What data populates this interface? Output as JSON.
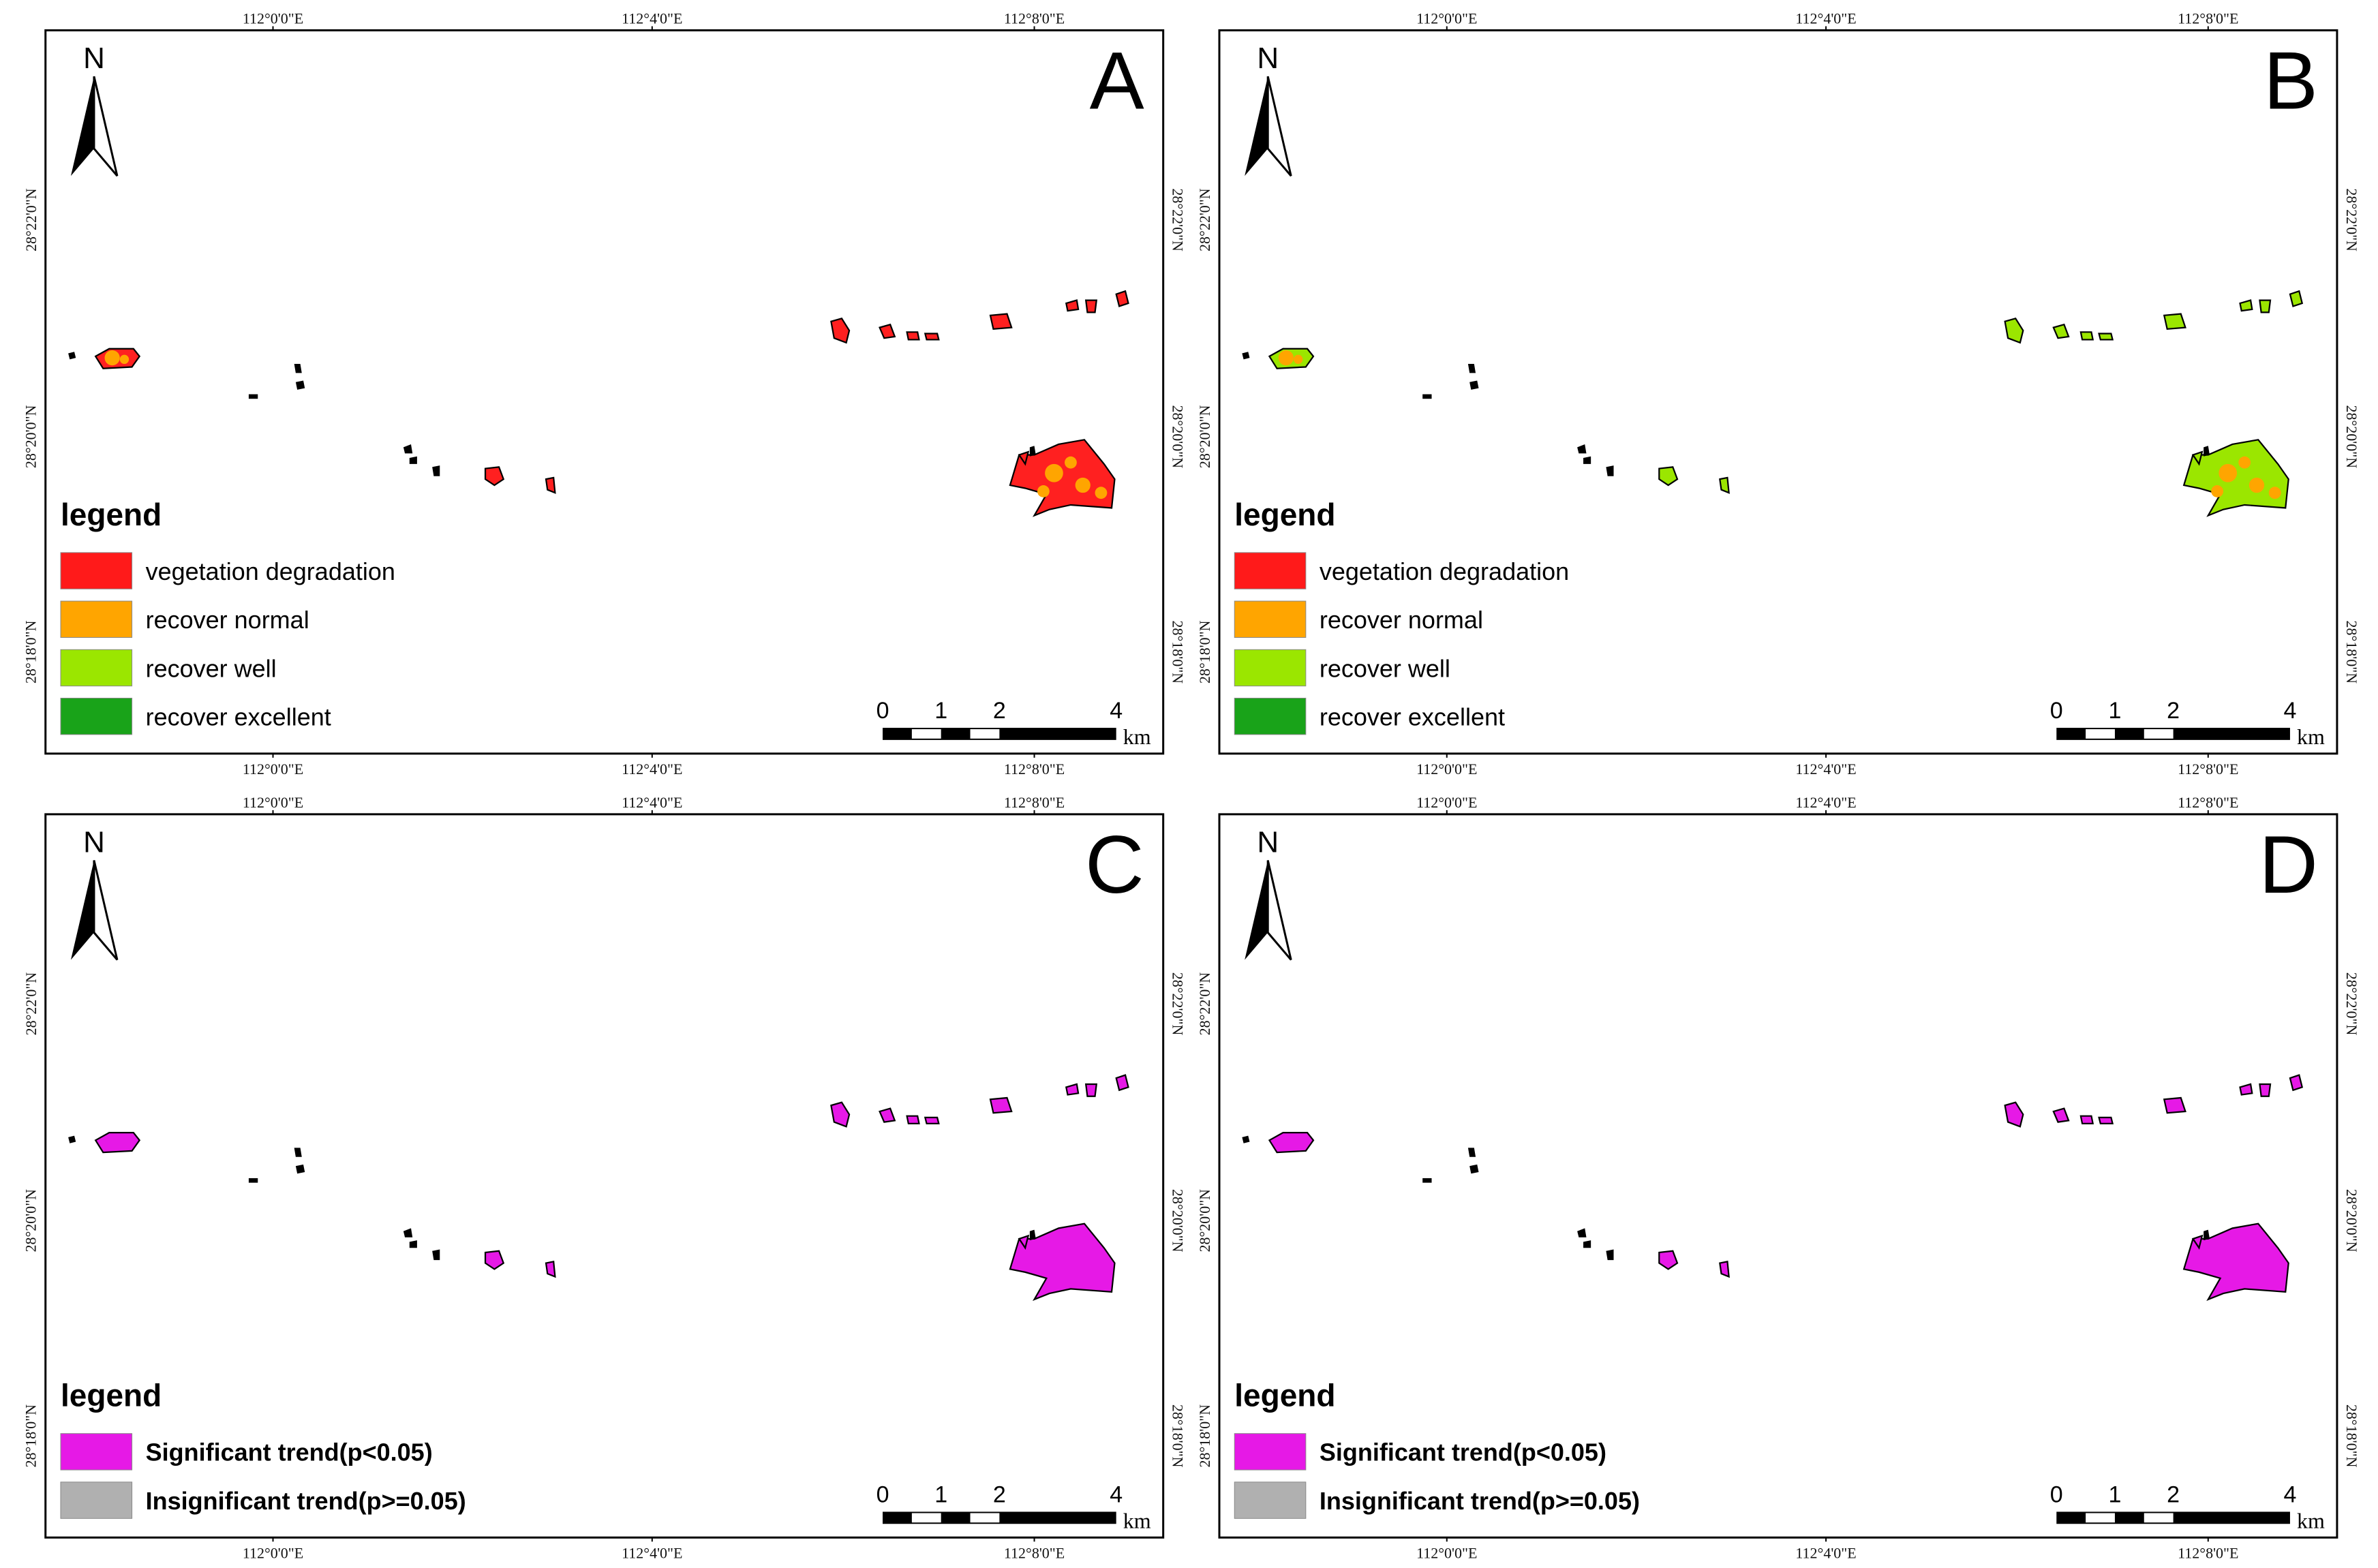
{
  "figure": {
    "panels": [
      {
        "id": "A",
        "legend": {
          "title": "legend",
          "items": [
            {
              "label": "vegetation degradation",
              "color": "#ff1a1a"
            },
            {
              "label": "recover normal",
              "color": "#ffa500"
            },
            {
              "label": "recover well",
              "color": "#9be600"
            },
            {
              "label": "recover excellent",
              "color": "#19a319"
            }
          ]
        },
        "patch_fill": "#ff2020",
        "patch_accent": "#ffa500"
      },
      {
        "id": "B",
        "legend": {
          "title": "legend",
          "items": [
            {
              "label": "vegetation degradation",
              "color": "#ff1a1a"
            },
            {
              "label": "recover normal",
              "color": "#ffa500"
            },
            {
              "label": "recover well",
              "color": "#9be600"
            },
            {
              "label": "recover excellent",
              "color": "#19a319"
            }
          ]
        },
        "patch_fill": "#9be600",
        "patch_accent": "#ffa500"
      },
      {
        "id": "C",
        "legend": {
          "title": "legend",
          "items": [
            {
              "label": "Significant trend(p<0.05)",
              "color": "#e619e6"
            },
            {
              "label": "Insignificant trend(p>=0.05)",
              "color": "#b0b0b0"
            }
          ]
        },
        "patch_fill": "#e619e6",
        "patch_accent": "#e619e6"
      },
      {
        "id": "D",
        "legend": {
          "title": "legend",
          "items": [
            {
              "label": "Significant trend(p<0.05)",
              "color": "#e619e6"
            },
            {
              "label": "Insignificant trend(p>=0.05)",
              "color": "#b0b0b0"
            }
          ]
        },
        "patch_fill": "#e619e6",
        "patch_accent": "#e619e6"
      }
    ],
    "lon_ticks": [
      "112°0'0\"E",
      "112°4'0\"E",
      "112°8'0\"E"
    ],
    "lat_ticks": [
      "28°22'0\"N",
      "28°20'0\"N",
      "28°18'0\"N"
    ],
    "north_label": "N",
    "scale_bar": {
      "ticks": [
        "0",
        "1",
        "2",
        "4"
      ],
      "unit": "km"
    }
  }
}
